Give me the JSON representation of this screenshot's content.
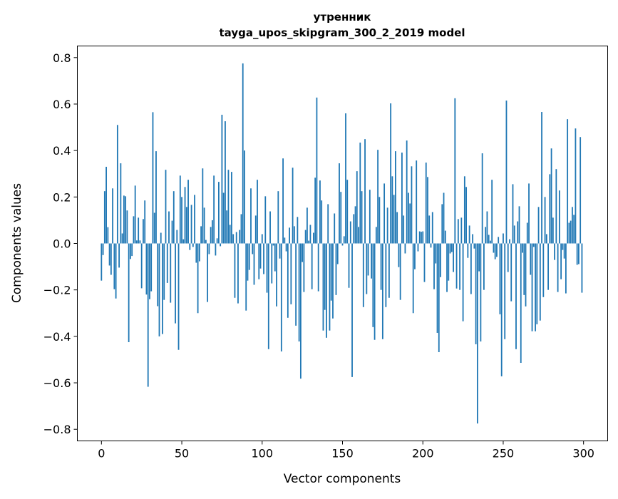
{
  "chart_data": {
    "type": "bar",
    "title_line1": "утренник",
    "title_line2": "tayga_upos_skipgram_300_2_2019 model",
    "xlabel": "Vector components",
    "ylabel": "Components values",
    "xlim": [
      -15,
      315
    ],
    "ylim": [
      -0.85,
      0.85
    ],
    "xticks": [
      0,
      50,
      100,
      150,
      200,
      250,
      300
    ],
    "xtick_labels": [
      "0",
      "50",
      "100",
      "150",
      "200",
      "250",
      "300"
    ],
    "yticks": [
      -0.8,
      -0.6,
      -0.4,
      -0.2,
      0.0,
      0.2,
      0.4,
      0.6,
      0.8
    ],
    "ytick_labels": [
      "−0.8",
      "−0.6",
      "−0.4",
      "−0.2",
      "0.0",
      "0.2",
      "0.4",
      "0.6",
      "0.8"
    ],
    "grid": false,
    "color": "#1f77b4",
    "values": [
      -0.16,
      -0.05,
      0.225,
      0.33,
      0.07,
      -0.095,
      -0.135,
      0.237,
      -0.197,
      -0.237,
      0.51,
      -0.104,
      0.345,
      0.043,
      0.206,
      0.203,
      0.142,
      -0.425,
      -0.067,
      -0.054,
      0.117,
      0.249,
      0.013,
      0.111,
      0.013,
      -0.193,
      0.105,
      0.185,
      -0.22,
      -0.617,
      -0.24,
      -0.206,
      0.565,
      0.132,
      0.397,
      -0.27,
      -0.4,
      0.046,
      -0.39,
      -0.243,
      0.317,
      -0.17,
      0.138,
      -0.255,
      0.098,
      0.225,
      -0.344,
      0.058,
      -0.458,
      0.292,
      0.2,
      0.018,
      0.243,
      0.157,
      0.274,
      -0.028,
      0.166,
      -0.015,
      0.209,
      -0.083,
      -0.3,
      -0.077,
      0.074,
      0.323,
      0.154,
      0.015,
      -0.252,
      -0.046,
      0.071,
      0.1,
      0.292,
      -0.052,
      0.022,
      0.265,
      -0.012,
      0.554,
      0.218,
      0.526,
      0.142,
      0.317,
      0.08,
      0.308,
      0.04,
      -0.234,
      0.049,
      -0.258,
      0.058,
      0.126,
      0.775,
      0.4,
      -0.289,
      -0.16,
      -0.114,
      0.237,
      -0.046,
      -0.178,
      0.12,
      0.274,
      -0.154,
      -0.108,
      0.04,
      -0.132,
      0.203,
      -0.212,
      -0.455,
      0.138,
      -0.172,
      -0.009,
      -0.12,
      -0.271,
      0.225,
      -0.065,
      -0.465,
      0.366,
      0.025,
      -0.034,
      -0.32,
      0.068,
      -0.262,
      0.326,
      0.074,
      -0.354,
      0.114,
      -0.422,
      -0.582,
      -0.08,
      -0.209,
      0.058,
      0.154,
      0.012,
      0.08,
      -0.197,
      0.046,
      0.283,
      0.628,
      -0.206,
      0.271,
      0.185,
      -0.375,
      -0.286,
      -0.406,
      0.169,
      -0.375,
      -0.246,
      -0.323,
      0.129,
      -0.222,
      -0.089,
      0.345,
      0.222,
      -0.009,
      0.031,
      0.56,
      0.274,
      -0.191,
      0.095,
      -0.575,
      0.126,
      0.16,
      0.311,
      0.071,
      0.434,
      0.225,
      -0.274,
      0.449,
      -0.218,
      -0.138,
      0.231,
      -0.151,
      -0.36,
      -0.415,
      0.071,
      0.403,
      0.2,
      -0.2,
      -0.412,
      0.258,
      -0.274,
      0.154,
      -0.234,
      0.603,
      0.289,
      0.209,
      0.397,
      0.135,
      -0.102,
      -0.243,
      0.391,
      0.12,
      -0.043,
      0.443,
      0.218,
      0.172,
      0.332,
      -0.3,
      -0.111,
      0.357,
      -0.034,
      0.052,
      0.05,
      0.052,
      -0.166,
      0.348,
      0.286,
      0.12,
      -0.018,
      0.135,
      -0.197,
      -0.086,
      -0.385,
      -0.468,
      -0.145,
      0.169,
      0.218,
      0.055,
      -0.209,
      -0.16,
      -0.043,
      -0.037,
      -0.123,
      0.625,
      -0.194,
      0.105,
      -0.2,
      0.111,
      -0.335,
      0.289,
      0.243,
      -0.062,
      0.077,
      -0.218,
      0.04,
      -0.022,
      -0.434,
      -0.775,
      -0.12,
      -0.422,
      0.388,
      -0.2,
      0.071,
      0.138,
      0.037,
      0.012,
      0.274,
      -0.04,
      -0.068,
      -0.058,
      0.028,
      -0.305,
      -0.572,
      0.043,
      -0.412,
      0.615,
      -0.123,
      0.018,
      -0.249,
      0.255,
      0.077,
      -0.455,
      0.095,
      0.16,
      -0.514,
      -0.04,
      -0.222,
      -0.271,
      0.089,
      0.258,
      -0.135,
      -0.378,
      -0.015,
      -0.378,
      -0.348,
      0.157,
      -0.332,
      0.566,
      -0.231,
      0.2,
      0.04,
      -0.2,
      0.298,
      0.409,
      0.111,
      -0.071,
      0.32,
      -0.209,
      0.228,
      -0.154,
      -0.028,
      -0.065,
      -0.215,
      0.535,
      0.089,
      0.098,
      0.157,
      0.123,
      0.495,
      -0.092,
      -0.089,
      0.458,
      -0.212
    ]
  }
}
